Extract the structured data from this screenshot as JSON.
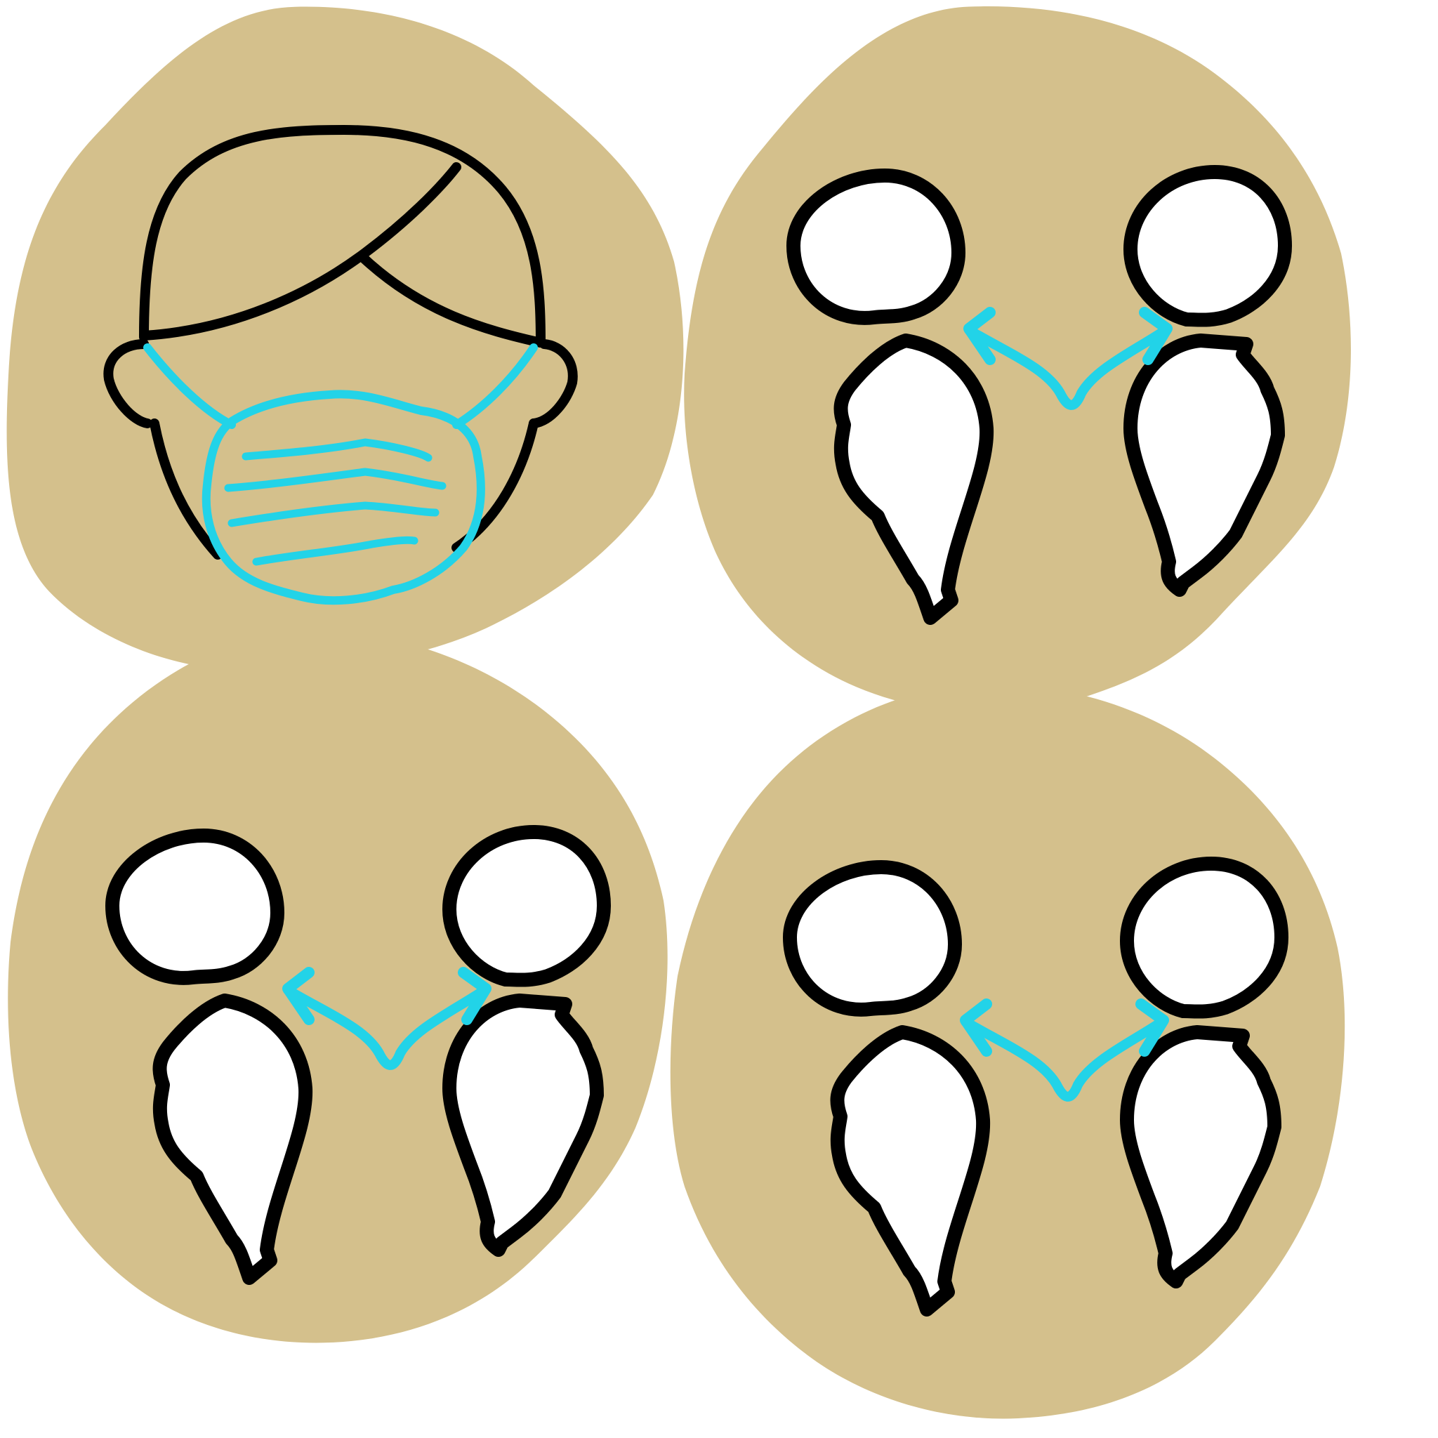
{
  "colors": {
    "sticker_fill": "#d4c08c",
    "outline": "#000000",
    "accent": "#22d3e8",
    "figure_fill": "#ffffff",
    "background": "#ffffff"
  },
  "stickers": [
    {
      "id": "face-mask",
      "icon": "face-mask-icon"
    },
    {
      "id": "distance-1",
      "icon": "social-distance-icon"
    },
    {
      "id": "distance-2",
      "icon": "social-distance-icon"
    },
    {
      "id": "distance-3",
      "icon": "social-distance-icon"
    }
  ]
}
